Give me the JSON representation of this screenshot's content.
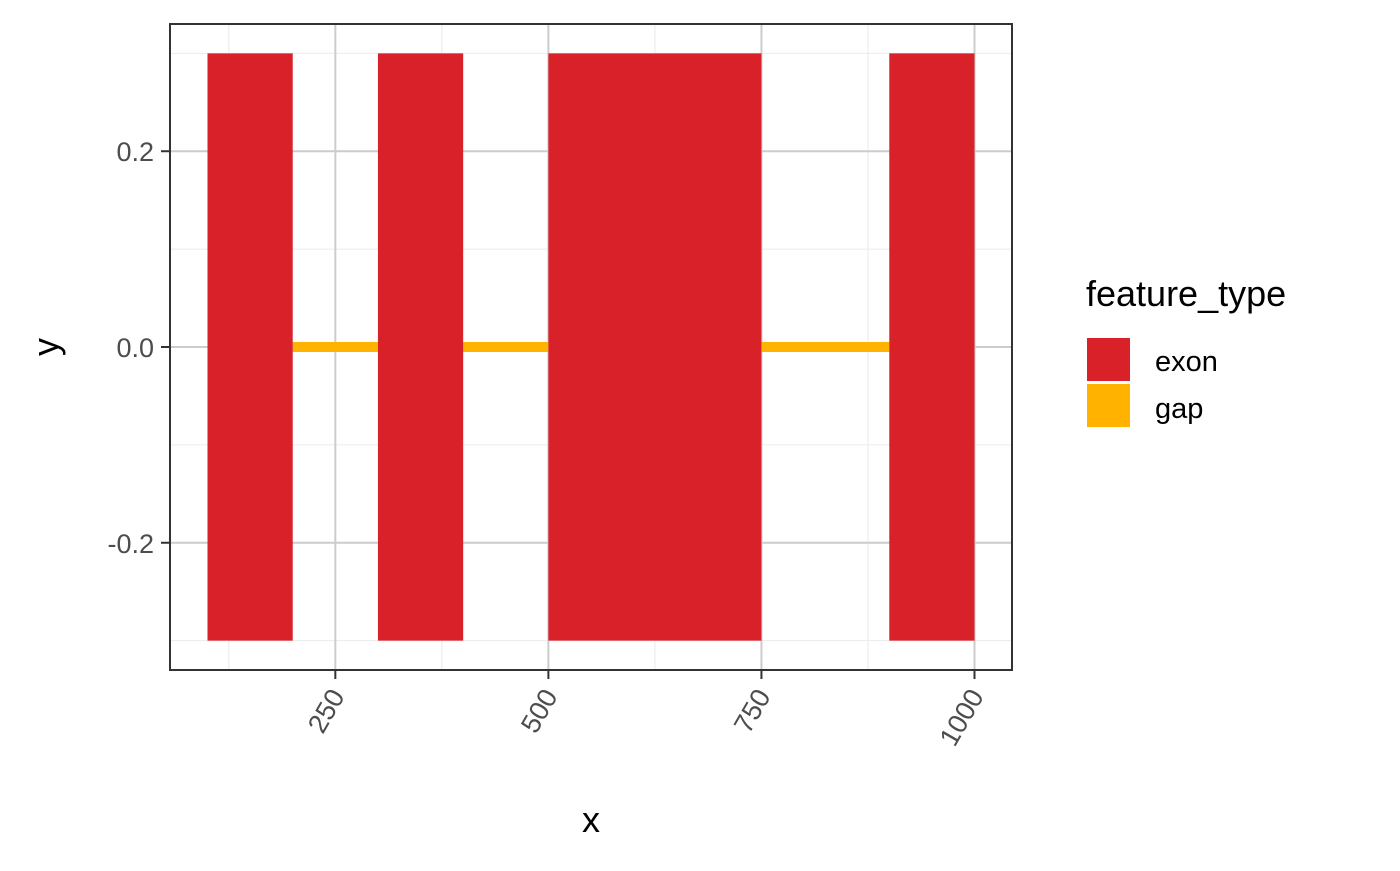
{
  "chart_data": {
    "type": "bar",
    "title": "",
    "xlabel": "x",
    "ylabel": "y",
    "xlim": [
      56,
      1044
    ],
    "ylim": [
      -0.33,
      0.33
    ],
    "x_major_ticks": [
      250,
      500,
      750,
      1000
    ],
    "x_minor_ticks": [
      125,
      375,
      625,
      875
    ],
    "x_tick_labels": [
      "250",
      "500",
      "750",
      "1000"
    ],
    "y_major_ticks": [
      0.2,
      0.0,
      -0.2
    ],
    "y_minor_ticks": [
      0.3,
      0.1,
      -0.1,
      -0.3
    ],
    "y_tick_labels": [
      "0.2",
      "0.0",
      "-0.2"
    ],
    "grid": true,
    "legend": {
      "title": "feature_type",
      "position": "right",
      "entries": [
        {
          "label": "exon",
          "color": "#d92129"
        },
        {
          "label": "gap",
          "color": "#ffb300"
        }
      ]
    },
    "series": [
      {
        "name": "exon",
        "color": "#d92129",
        "segments": [
          {
            "start": 100,
            "end": 200,
            "ymin": -0.3,
            "ymax": 0.3
          },
          {
            "start": 300,
            "end": 400,
            "ymin": -0.3,
            "ymax": 0.3
          },
          {
            "start": 500,
            "end": 750,
            "ymin": -0.3,
            "ymax": 0.3
          },
          {
            "start": 900,
            "end": 1000,
            "ymin": -0.3,
            "ymax": 0.3
          }
        ]
      },
      {
        "name": "gap",
        "color": "#ffb300",
        "segments": [
          {
            "start": 200,
            "end": 300,
            "y": 0
          },
          {
            "start": 400,
            "end": 500,
            "y": 0
          },
          {
            "start": 750,
            "end": 900,
            "y": 0
          }
        ]
      }
    ]
  }
}
